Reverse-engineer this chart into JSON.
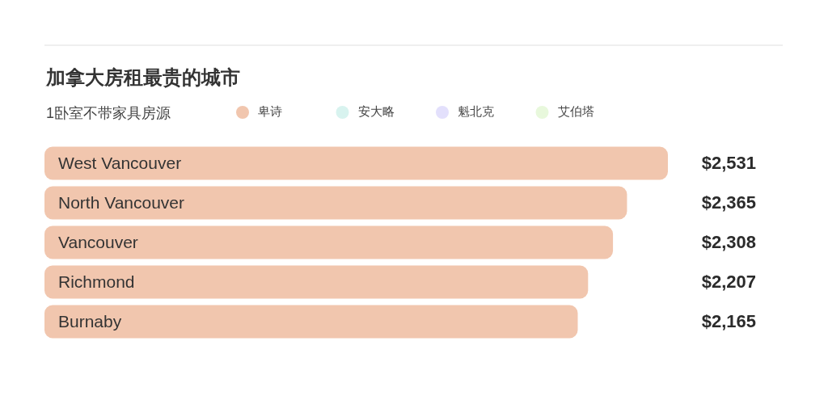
{
  "chart_data": {
    "type": "bar",
    "orientation": "horizontal",
    "title": "加拿大房租最贵的城市",
    "subtitle": "1卧室不带家具房源",
    "categories": [
      "West Vancouver",
      "North Vancouver",
      "Vancouver",
      "Richmond",
      "Burnaby"
    ],
    "series": [
      {
        "name": "卑诗",
        "color": "#f1c6ae",
        "values": [
          2531,
          2365,
          2308,
          2207,
          2165
        ],
        "value_labels": [
          "$2,531",
          "$2,365",
          "$2,308",
          "$2,207",
          "$2,165"
        ]
      },
      {
        "name": "安大略",
        "color": "#d8f3ef",
        "values": [
          null,
          null,
          null,
          null,
          null
        ]
      },
      {
        "name": "魁北克",
        "color": "#e3e0fc",
        "values": [
          null,
          null,
          null,
          null,
          null
        ]
      },
      {
        "name": "艾伯塔",
        "color": "#e8f8dc",
        "values": [
          null,
          null,
          null,
          null,
          null
        ]
      }
    ],
    "legend": "top",
    "tick_labels": "y"
  }
}
